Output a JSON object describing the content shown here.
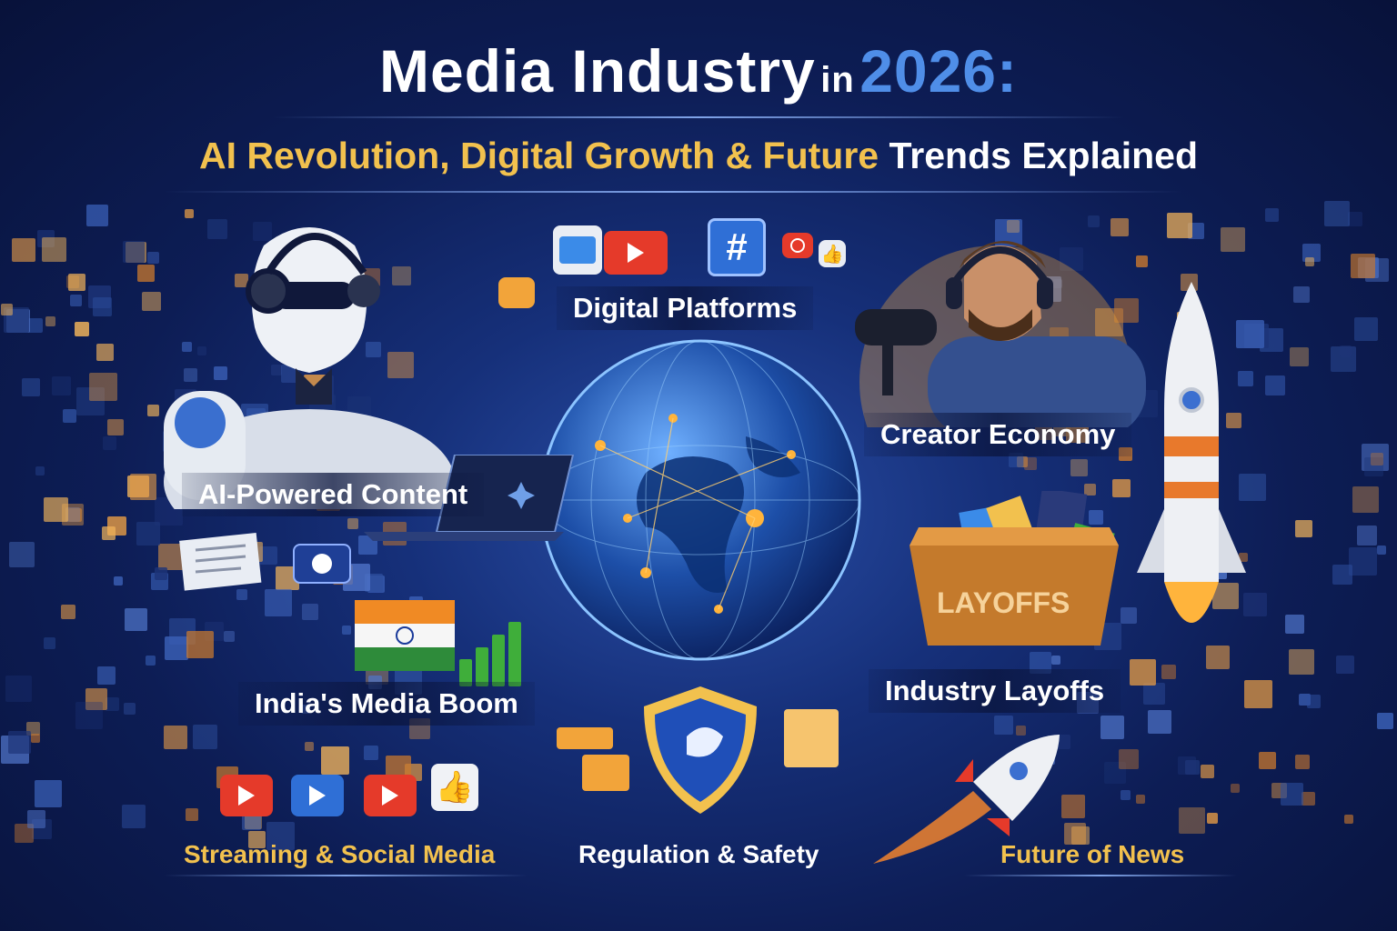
{
  "title": {
    "main": "Media Industry",
    "connector": "in",
    "year": "2026:"
  },
  "subtitle": {
    "highlight": "AI Revolution, Digital Growth & Future",
    "rest": "Trends Explained"
  },
  "labels": {
    "digital_platforms": "Digital Platforms",
    "ai_content": "AI-Powered Content",
    "creator_economy": "Creator Economy",
    "india_boom": "India's Media Boom",
    "industry_layoffs": "Industry Layoffs",
    "streaming_social": "Streaming & Social Media",
    "regulation_safety": "Regulation & Safety",
    "future_news": "Future of News"
  },
  "box_text": "LAYOFFS",
  "hashtag": "#",
  "colors": {
    "gold": "#f2c14e",
    "youtube_red": "#e53a2a",
    "accent_blue": "#4f8ee8",
    "india_saffron": "#f08a24",
    "india_green": "#2e8b3a"
  },
  "icons": [
    "robot-illustration",
    "globe-illustration",
    "podcaster-illustration",
    "rocket-illustration",
    "shield-icon",
    "play-icon",
    "thumbs-up-icon",
    "hashtag-icon",
    "india-flag-icon",
    "laptop-icon",
    "newspaper-icon",
    "box-icon"
  ]
}
